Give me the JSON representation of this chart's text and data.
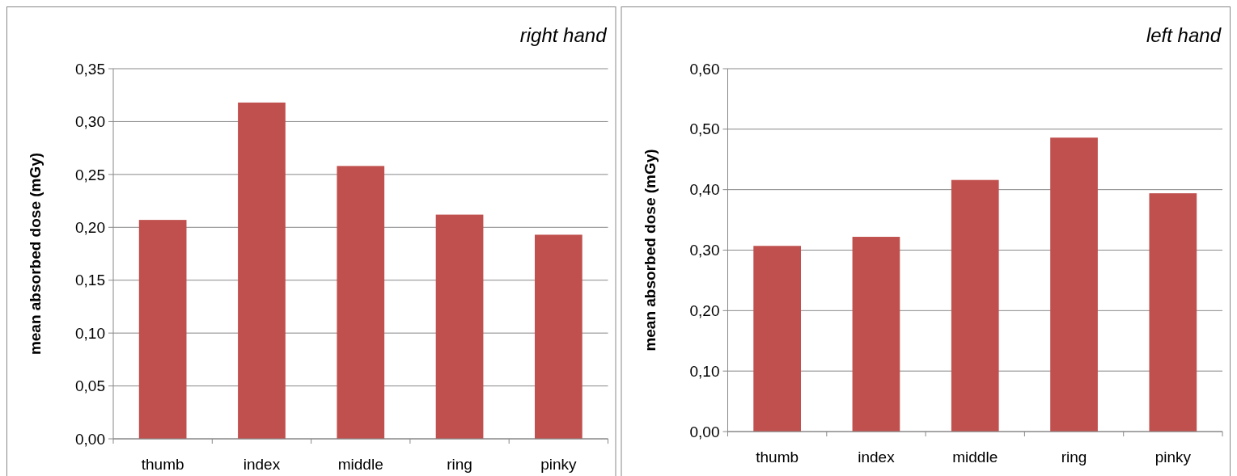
{
  "chart_data": [
    {
      "type": "bar",
      "title": "right hand",
      "ylabel": "mean absorbed dose (mGy)",
      "categories": [
        "thumb",
        "index",
        "middle",
        "ring",
        "pinky"
      ],
      "values": [
        0.207,
        0.318,
        0.258,
        0.212,
        0.193
      ],
      "color": "#c0504d",
      "ylim": [
        0,
        0.35
      ],
      "yticks": [
        {
          "value": 0,
          "label": "0,00"
        },
        {
          "value": 0.05,
          "label": "0,05"
        },
        {
          "value": 0.1,
          "label": "0,10"
        },
        {
          "value": 0.15,
          "label": "0,15"
        },
        {
          "value": 0.2,
          "label": "0,20"
        },
        {
          "value": 0.25,
          "label": "0,25"
        },
        {
          "value": 0.3,
          "label": "0,30"
        },
        {
          "value": 0.35,
          "label": "0,35"
        }
      ],
      "grid": "y"
    },
    {
      "type": "bar",
      "title": "left hand",
      "ylabel": "mean absorbed dose (mGy)",
      "categories": [
        "thumb",
        "index",
        "middle",
        "ring",
        "pinky"
      ],
      "values": [
        0.307,
        0.322,
        0.416,
        0.486,
        0.394
      ],
      "color": "#c0504d",
      "ylim": [
        0,
        0.6
      ],
      "yticks": [
        {
          "value": 0,
          "label": "0,00"
        },
        {
          "value": 0.1,
          "label": "0,10"
        },
        {
          "value": 0.2,
          "label": "0,20"
        },
        {
          "value": 0.3,
          "label": "0,30"
        },
        {
          "value": 0.4,
          "label": "0,40"
        },
        {
          "value": 0.5,
          "label": "0,50"
        },
        {
          "value": 0.6,
          "label": "0,60"
        }
      ],
      "grid": "y"
    }
  ]
}
